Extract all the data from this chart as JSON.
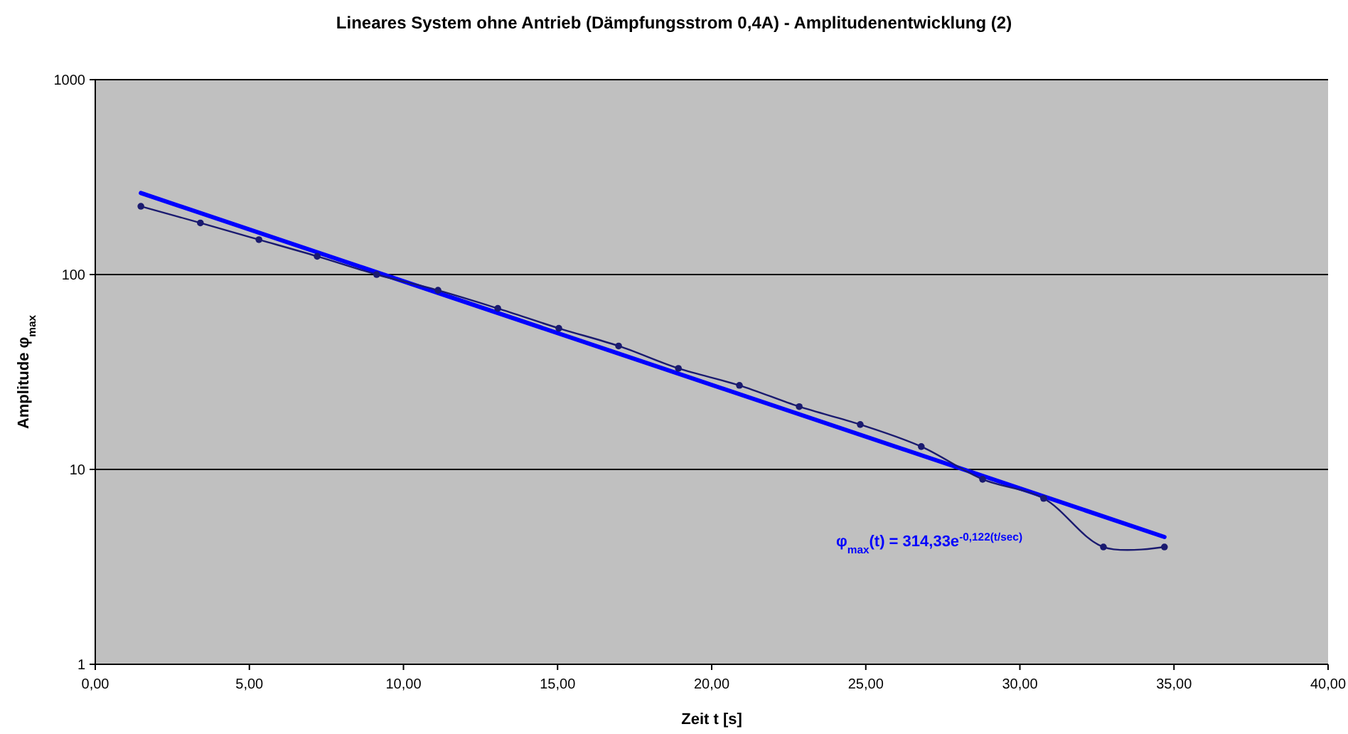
{
  "chart_data": {
    "type": "line",
    "title": "Lineares System ohne Antrieb (Dämpfungsstrom 0,4A) - Amplitudenentwicklung (2)",
    "xlabel": "Zeit t [s]",
    "ylabel": "Amplitude φ$_{max}$",
    "log": "y",
    "grid": "y",
    "xlim": [
      0,
      40
    ],
    "ylim": [
      1,
      1000
    ],
    "xticks": [
      {
        "value": 0,
        "label": "0,00"
      },
      {
        "value": 5,
        "label": "5,00"
      },
      {
        "value": 10,
        "label": "10,00"
      },
      {
        "value": 15,
        "label": "15,00"
      },
      {
        "value": 20,
        "label": "20,00"
      },
      {
        "value": 25,
        "label": "25,00"
      },
      {
        "value": 30,
        "label": "30,00"
      },
      {
        "value": 35,
        "label": "35,00"
      },
      {
        "value": 40,
        "label": "40,00"
      }
    ],
    "yticks": [
      1,
      10,
      100,
      1000
    ],
    "series": [
      {
        "color": "#1a1a70",
        "marker": "circle",
        "x": [
          1.48,
          3.41,
          5.31,
          7.2,
          9.13,
          11.12,
          13.06,
          15.04,
          16.98,
          18.92,
          20.9,
          22.84,
          24.82,
          26.8,
          28.79,
          30.77,
          32.71,
          34.69
        ],
        "values": [
          224,
          184,
          151,
          124,
          100,
          83,
          67,
          53,
          43,
          33,
          27,
          21,
          17,
          13.1,
          8.9,
          7.1,
          4.0,
          4.0
        ]
      },
      {
        "color": "#0000ff",
        "marker": "none",
        "x": [
          1.48,
          34.69
        ],
        "values": [
          262,
          4.5
        ]
      }
    ],
    "annotations": [
      "φ$_{max}$(t) = 314,33e$^{-0,122(t/sec)}$"
    ]
  }
}
